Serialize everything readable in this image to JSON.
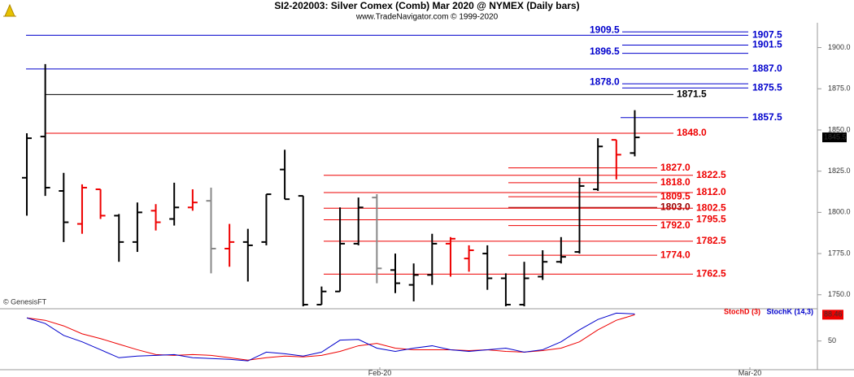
{
  "title": "SI2-202003:  Silver Comex (Comb) Mar 2020 @ NYMEX  (Daily bars)",
  "subtitle": "www.TradeNavigator.com © 1999-2020",
  "watermark": "© GenesisFT",
  "chart_data": [
    {
      "type": "ohlc",
      "open": [
        1821,
        1846,
        1813,
        1793,
        1814,
        1798,
        1782,
        1801,
        1796,
        1803,
        1807,
        1778,
        1782,
        1782,
        1826,
        1810,
        1744,
        1752,
        1781,
        1809,
        1765,
        1756,
        1762,
        1781,
        1772,
        1775,
        1760,
        1744,
        1761,
        1770,
        1776,
        1814,
        1844,
        1836
      ],
      "high": [
        1848,
        1890,
        1824,
        1817,
        1814,
        1799,
        1806,
        1805,
        1818,
        1814,
        1815,
        1793,
        1790,
        1811,
        1838,
        1810,
        1755,
        1803,
        1809,
        1811,
        1775,
        1769,
        1787,
        1785,
        1780,
        1780,
        1763,
        1770,
        1777,
        1785,
        1821,
        1845,
        1844,
        1862
      ],
      "low": [
        1798,
        1810,
        1782,
        1787,
        1796,
        1770,
        1776,
        1789,
        1792,
        1801,
        1763,
        1767,
        1758,
        1780,
        1808,
        1743,
        1744,
        1752,
        1780,
        1757,
        1751,
        1746,
        1756,
        1761,
        1764,
        1753,
        1743,
        1743,
        1759,
        1769,
        1775,
        1813,
        1820,
        1834
      ],
      "close": [
        1845,
        1815,
        1794,
        1815,
        1798,
        1782,
        1800,
        1794,
        1803,
        1806,
        1778,
        1782,
        1780,
        1811,
        1808,
        1744,
        1752,
        1781,
        1803,
        1766,
        1757,
        1762,
        1781,
        1784,
        1777,
        1760,
        1744,
        1760,
        1770,
        1773,
        1816,
        1840,
        1835,
        1845.5
      ],
      "colors": [
        "#000",
        "#000",
        "#000",
        "#e00",
        "#e00",
        "#000",
        "#000",
        "#e00",
        "#000",
        "#e00",
        "#888",
        "#e00",
        "#000",
        "#000",
        "#000",
        "#000",
        "#000",
        "#000",
        "#000",
        "#888",
        "#000",
        "#000",
        "#000",
        "#e00",
        "#e00",
        "#000",
        "#000",
        "#000",
        "#000",
        "#000",
        "#000",
        "#000",
        "#e00",
        "#000"
      ],
      "levels": {
        "values": [
          1909.5,
          1907.5,
          1901.5,
          1896.5,
          1887.0,
          1878.0,
          1875.5,
          1871.5,
          1857.5,
          1848.0,
          1827.0,
          1822.5,
          1818.0,
          1812.0,
          1809.5,
          1803.0,
          1802.5,
          1795.5,
          1792.0,
          1782.5,
          1774.0,
          1762.5
        ],
        "value_labels": [
          "1909.5",
          "1907.5",
          "1901.5",
          "1896.5",
          "1887.0",
          "1878.0",
          "1875.5",
          "1871.5",
          "1857.5",
          "1848.0",
          "1827.0",
          "1822.5",
          "1818.0",
          "1812.0",
          "1809.5",
          "1803.0",
          "1802.5",
          "1795.5",
          "1792.0",
          "1782.5",
          "1774.0",
          "1762.5"
        ],
        "colors": [
          "#00c",
          "#00c",
          "#00c",
          "#00c",
          "#00c",
          "#00c",
          "#00c",
          "#000",
          "#00c",
          "#e00",
          "#e00",
          "#e00",
          "#e00",
          "#e00",
          "#e00",
          "#900",
          "#e00",
          "#e00",
          "#e00",
          "#e00",
          "#e00",
          "#e00"
        ]
      },
      "ylim": [
        1742,
        1920
      ],
      "yticks": [
        {
          "value": 1750,
          "label": "1750.0"
        },
        {
          "value": 1775,
          "label": "1775.0"
        },
        {
          "value": 1800,
          "label": "1800.0"
        },
        {
          "value": 1825,
          "label": "1825.0"
        },
        {
          "value": 1850,
          "label": "1850.0"
        },
        {
          "value": 1875,
          "label": "1875.0"
        },
        {
          "value": 1900,
          "label": "1900.0"
        }
      ]
    },
    {
      "type": "line",
      "series": [
        {
          "name": "StochD (3)",
          "color": "#e00",
          "values": [
            83.8,
            80.3,
            72.1,
            60.5,
            53.5,
            45.3,
            37.2,
            30.2,
            29.0,
            30.2,
            29.0,
            25.5,
            22.0,
            25.5,
            27.9,
            26.7,
            29.0,
            34.8,
            43.0,
            46.5,
            39.5,
            37.2,
            37.2,
            37.2,
            36.0,
            37.2,
            34.8,
            33.7,
            36.0,
            39.5,
            48.8,
            66.3,
            80.3,
            88.46
          ]
        },
        {
          "name": "StochK (14,3)",
          "color": "#00c",
          "values": [
            83.8,
            75.6,
            58.2,
            48.8,
            37.2,
            25.5,
            27.9,
            29.0,
            30.2,
            25.5,
            24.4,
            23.2,
            20.9,
            33.7,
            31.4,
            27.9,
            33.7,
            51.2,
            52.3,
            39.5,
            34.8,
            39.5,
            43.0,
            37.2,
            34.8,
            37.2,
            39.5,
            33.7,
            37.2,
            48.8,
            66.3,
            81.5,
            90.8,
            89.6
          ]
        }
      ],
      "ylim": [
        8,
        96
      ],
      "yticks": [
        50
      ],
      "x_labels": [
        "Feb-20",
        "Mar-20"
      ]
    }
  ]
}
